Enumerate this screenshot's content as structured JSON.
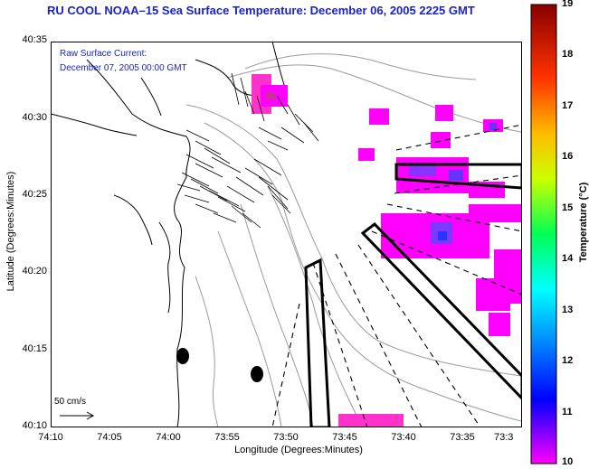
{
  "title": "RU COOL  NOAA–15  Sea Surface Temperature:  December 06, 2005 2225 GMT",
  "annotation": {
    "line1": "Raw Surface Current:",
    "line2": "December 07, 2005 00:00 GMT"
  },
  "scale_label": "50 cm/s",
  "axes": {
    "xlabel": "Longitude (Degrees:Minutes)",
    "ylabel": "Latitude (Degrees:Minutes)",
    "xticks": [
      "74:10",
      "74:05",
      "74:00",
      "73:55",
      "73:50",
      "73:45",
      "73:40",
      "73:35",
      "73:3"
    ],
    "yticks": [
      "40:35",
      "40:30",
      "40:25",
      "40:20",
      "40:15",
      "40:10"
    ]
  },
  "colorbar": {
    "label": "Temperature (°C)",
    "ticks": [
      "19",
      "18",
      "17",
      "16",
      "15",
      "14",
      "13",
      "12",
      "11",
      "10"
    ],
    "min": 10,
    "max": 19,
    "colors": [
      "#ff00ff",
      "#4400ff",
      "#0000ff",
      "#0088ff",
      "#00ffff",
      "#00ff44",
      "#ccff00",
      "#ffaa00",
      "#ff2200",
      "#880000"
    ]
  }
}
